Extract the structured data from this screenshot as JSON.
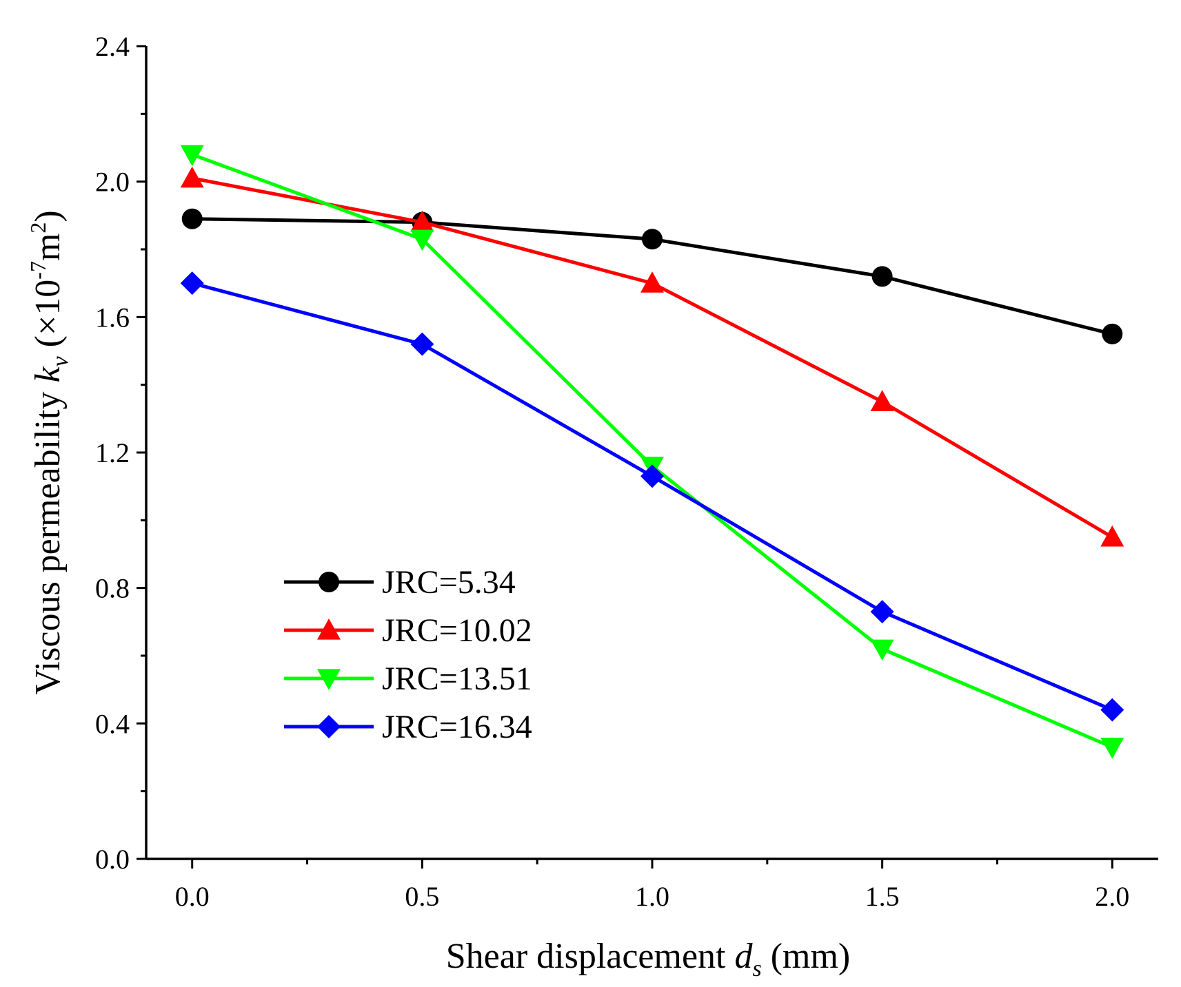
{
  "chart_data": {
    "type": "line",
    "title": "",
    "x": [
      0.0,
      0.5,
      1.0,
      1.5,
      2.0
    ],
    "xlim": [
      -0.1,
      2.1
    ],
    "ylim": [
      0.0,
      2.4
    ],
    "xticks": [
      "0.0",
      "0.5",
      "1.0",
      "1.5",
      "2.0"
    ],
    "yticks": [
      "0.0",
      "0.4",
      "0.8",
      "1.2",
      "1.6",
      "2.0",
      "2.4"
    ],
    "xticks_values": [
      0.0,
      0.5,
      1.0,
      1.5,
      2.0
    ],
    "yticks_values": [
      0.0,
      0.4,
      0.8,
      1.2,
      1.6,
      2.0,
      2.4
    ],
    "xlabel": {
      "prefix": "Shear displacement ",
      "var": "d",
      "sub": "s",
      "suffix": " (mm)"
    },
    "ylabel": {
      "prefix": "Viscous permeability ",
      "var": "k",
      "sub": "v",
      "mid": " (×10",
      "exp": "-7",
      "unit": "m",
      "unit_exp": "2",
      "close": ")"
    },
    "legend_position": "center-left",
    "grid": false,
    "series": [
      {
        "name": "JRC=5.34",
        "color": "#000000",
        "marker": "circle",
        "values": [
          1.89,
          1.88,
          1.83,
          1.72,
          1.55
        ]
      },
      {
        "name": "JRC=10.02",
        "color": "#ff0000",
        "marker": "triangle-up",
        "values": [
          2.01,
          1.88,
          1.7,
          1.35,
          0.95
        ]
      },
      {
        "name": "JRC=13.51",
        "color": "#00ff00",
        "marker": "triangle-down",
        "values": [
          2.08,
          1.83,
          1.16,
          0.62,
          0.33
        ]
      },
      {
        "name": "JRC=16.34",
        "color": "#0000ff",
        "marker": "diamond",
        "values": [
          1.7,
          1.52,
          1.13,
          0.73,
          0.44
        ]
      }
    ]
  }
}
